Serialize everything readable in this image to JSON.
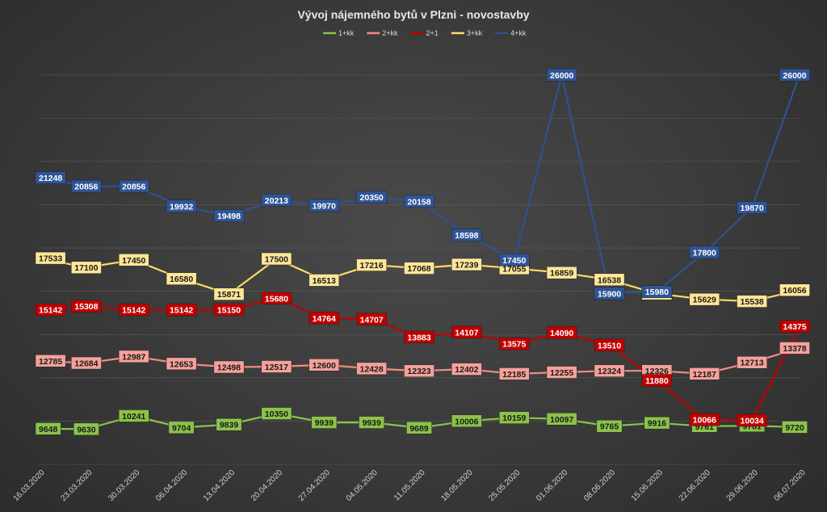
{
  "chart_data": {
    "type": "line",
    "title": "Vývoj nájemného bytů v Plzni - novostavby",
    "xlabel": "",
    "ylabel": "",
    "legend_position": "top",
    "grid": true,
    "ylim": [
      8000,
      27000
    ],
    "categories": [
      "16.03.2020",
      "23.03.2020",
      "30.03.2020",
      "06.04.2020",
      "13.04.2020",
      "20.04.2020",
      "27.04.2020",
      "04.05.2020",
      "11.05.2020",
      "18.05.2020",
      "25.05.2020",
      "01.06.2020",
      "08.06.2020",
      "15.06.2020",
      "22.06.2020",
      "29.06.2020",
      "06.07.2020"
    ],
    "series": [
      {
        "name": "1+kk",
        "color": "#8bc34a",
        "label_bg": "#8bc34a",
        "label_fg": "#1a1a1a",
        "values": [
          9648,
          9630,
          10241,
          9704,
          9839,
          10350,
          9939,
          9939,
          9689,
          10006,
          10159,
          10097,
          9765,
          9916,
          9761,
          9781,
          9720
        ]
      },
      {
        "name": "2+kk",
        "color": "#f08b84",
        "label_bg": "#f4a19a",
        "label_fg": "#1a1a1a",
        "values": [
          12785,
          12684,
          12987,
          12653,
          12498,
          12517,
          12600,
          12428,
          12323,
          12402,
          12185,
          12255,
          12324,
          12326,
          12187,
          12713,
          13378
        ]
      },
      {
        "name": "2+1",
        "color": "#c00000",
        "label_bg": "#c00000",
        "label_fg": "#ffffff",
        "values": [
          15142,
          15308,
          15142,
          15142,
          15150,
          15680,
          14764,
          14707,
          13883,
          14107,
          13575,
          14090,
          13510,
          11880,
          10066,
          10034,
          14375
        ]
      },
      {
        "name": "3+kk",
        "color": "#ffd966",
        "label_bg": "#ffe699",
        "label_fg": "#1a1a1a",
        "values": [
          17533,
          17100,
          17450,
          16580,
          15871,
          17500,
          16513,
          17216,
          17068,
          17239,
          17055,
          16859,
          16538,
          15888,
          15629,
          15538,
          16056
        ]
      },
      {
        "name": "4+kk",
        "color": "#2f528f",
        "label_bg": "#2f5597",
        "label_fg": "#ffffff",
        "values": [
          21248,
          20856,
          20856,
          19932,
          19498,
          20213,
          19970,
          20350,
          20158,
          18598,
          17450,
          26000,
          15900,
          15980,
          17800,
          19870,
          26000
        ]
      }
    ]
  }
}
